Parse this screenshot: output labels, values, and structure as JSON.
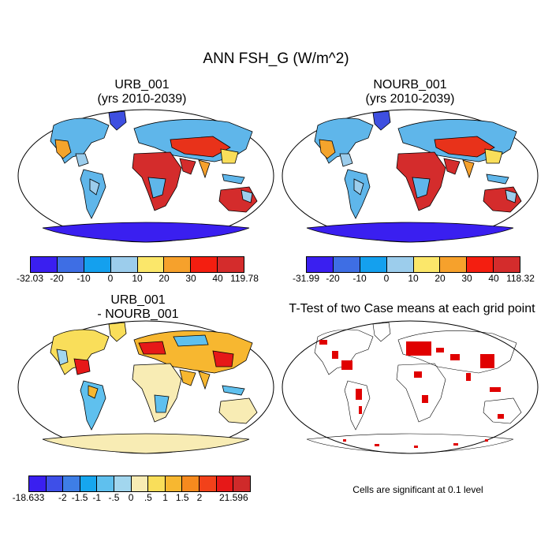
{
  "main_title": "ANN FSH_G (W/m^2)",
  "panels": [
    {
      "title_line1": "URB_001",
      "title_line2": "(yrs 2010-2039)"
    },
    {
      "title_line1": "NOURB_001",
      "title_line2": "(yrs 2010-2039)"
    },
    {
      "title_line1": "URB_001",
      "title_line2": "- NOURB_001"
    },
    {
      "title_line1": "T-Test of two Case means at each grid point",
      "title_line2": ""
    }
  ],
  "colorbars": [
    {
      "colors": [
        "#3a1ff0",
        "#3e6ee4",
        "#14a0ee",
        "#9ccdec",
        "#fbe76a",
        "#f6a12c",
        "#f41e10",
        "#d42c2c"
      ],
      "labels": [
        "-32.03",
        "-20",
        "-10",
        "0",
        "10",
        "20",
        "30",
        "40",
        "119.78"
      ]
    },
    {
      "colors": [
        "#3a1ff0",
        "#3e6ee4",
        "#14a0ee",
        "#9ccdec",
        "#fbe76a",
        "#f6a12c",
        "#f41e10",
        "#d42c2c"
      ],
      "labels": [
        "-31.99",
        "-20",
        "-10",
        "0",
        "10",
        "20",
        "30",
        "40",
        "118.32"
      ]
    },
    {
      "colors": [
        "#3a1ff0",
        "#3e4fe8",
        "#3e7ee6",
        "#16a6ee",
        "#5fc0ee",
        "#a2d6ee",
        "#f8ecb4",
        "#f9de5a",
        "#f7b730",
        "#f68a1e",
        "#f2411a",
        "#e61818",
        "#cf2a2a"
      ],
      "labels": [
        "-18.633",
        "",
        "-2",
        "-1.5",
        "-1",
        "-.5",
        "0",
        ".5",
        "1",
        "1.5",
        "2",
        "",
        "21.596"
      ]
    }
  ],
  "significance_note": "Cells are significant at 0.1 level",
  "colors": {
    "ocean": "#ffffff",
    "coast": "#000000",
    "significant": "#e00000"
  }
}
